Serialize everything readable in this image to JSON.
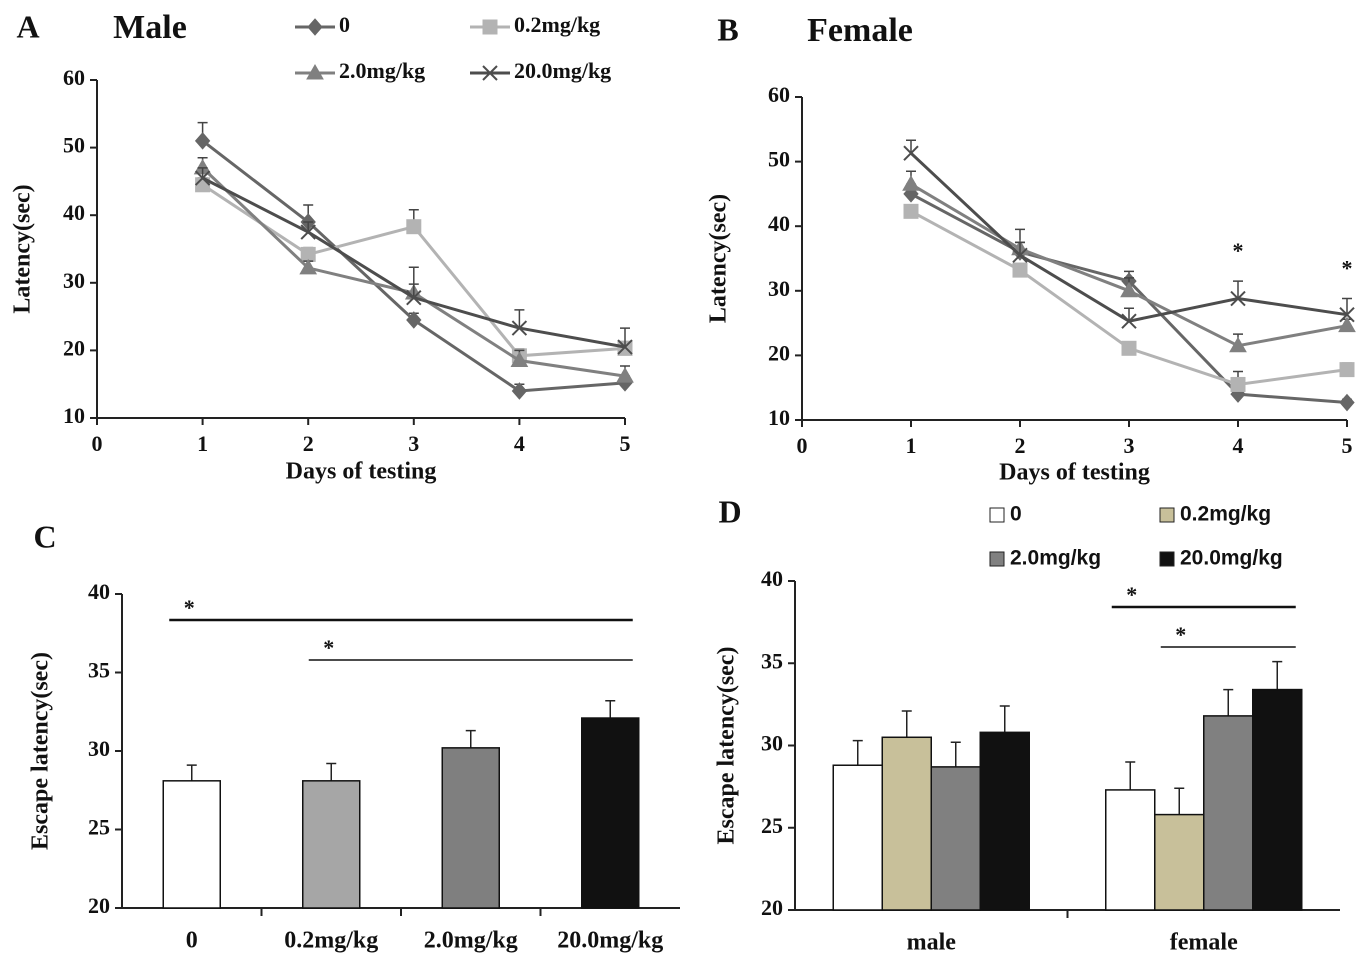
{
  "chart_data": [
    {
      "type": "line",
      "panel_label": "A",
      "title": "Male",
      "xlabel": "Days of testing",
      "ylabel": "Latency(sec)",
      "x": [
        1,
        2,
        3,
        4,
        5
      ],
      "xlim": [
        0,
        5
      ],
      "xticks": [
        0,
        1,
        2,
        3,
        4,
        5
      ],
      "ylim": [
        10,
        60
      ],
      "yticks": [
        10,
        20,
        30,
        40,
        50,
        60
      ],
      "legend": true,
      "series": [
        {
          "name": "0",
          "color": "#666666",
          "marker": "diamond",
          "values": [
            51,
            39,
            24.5,
            14,
            15.2
          ],
          "errors": [
            2.7,
            2.5,
            1,
            1,
            1
          ]
        },
        {
          "name": "0.2mg/kg",
          "color": "#b3b3b3",
          "marker": "square",
          "values": [
            44.5,
            34.2,
            38.3,
            19.2,
            20.3
          ],
          "errors": [
            1,
            1,
            2.5,
            1,
            1
          ]
        },
        {
          "name": "2.0mg/kg",
          "color": "#808080",
          "marker": "triangle",
          "values": [
            47,
            32.2,
            28.5,
            18.5,
            16.2
          ],
          "errors": [
            1.5,
            1,
            3.8,
            1.5,
            1.5
          ]
        },
        {
          "name": "20.0mg/kg",
          "color": "#4d4d4d",
          "marker": "x",
          "values": [
            45.5,
            37.5,
            27.8,
            23.3,
            20.5
          ],
          "errors": [
            1.5,
            1.5,
            2,
            2.7,
            2.8
          ]
        }
      ]
    },
    {
      "type": "line",
      "panel_label": "B",
      "title": "Female",
      "xlabel": "Days of testing",
      "ylabel": "Latency(sec)",
      "x": [
        1,
        2,
        3,
        4,
        5
      ],
      "xlim": [
        0,
        5
      ],
      "xticks": [
        0,
        1,
        2,
        3,
        4,
        5
      ],
      "ylim": [
        10,
        60
      ],
      "yticks": [
        10,
        20,
        30,
        40,
        50,
        60
      ],
      "legend": false,
      "series": [
        {
          "name": "0",
          "color": "#666666",
          "marker": "diamond",
          "values": [
            45,
            36,
            31.5,
            14,
            12.7
          ],
          "errors": [
            1.5,
            1.5,
            1.5,
            1,
            0.5
          ]
        },
        {
          "name": "0.2mg/kg",
          "color": "#b3b3b3",
          "marker": "square",
          "values": [
            42.3,
            33.2,
            21.1,
            15.5,
            17.8
          ],
          "errors": [
            1,
            1,
            1,
            2,
            1
          ]
        },
        {
          "name": "2.0mg/kg",
          "color": "#808080",
          "marker": "triangle",
          "values": [
            46.5,
            36.5,
            30,
            21.5,
            24.6
          ],
          "errors": [
            2,
            3,
            2,
            1.8,
            1
          ]
        },
        {
          "name": "20.0mg/kg",
          "color": "#4d4d4d",
          "marker": "x",
          "values": [
            51.3,
            35.5,
            25.3,
            28.8,
            26.3
          ],
          "errors": [
            2,
            2,
            2,
            2.7,
            2.5
          ]
        }
      ],
      "annotations": [
        {
          "text": "*",
          "x": 4
        },
        {
          "text": "*",
          "x": 5
        }
      ]
    },
    {
      "type": "bar",
      "panel_label": "C",
      "ylabel": "Escape latency(sec)",
      "categories": [
        "0",
        "0.2mg/kg",
        "2.0mg/kg",
        "20.0mg/kg"
      ],
      "values": [
        28.1,
        28.1,
        30.2,
        32.1
      ],
      "errors": [
        1,
        1.1,
        1.1,
        1.1
      ],
      "colors": [
        "#ffffff",
        "#a6a6a6",
        "#7f7f7f",
        "#111111"
      ],
      "ylim": [
        20,
        40
      ],
      "yticks": [
        20,
        25,
        30,
        35,
        40
      ],
      "annotations": [
        {
          "text": "*",
          "from": "0",
          "to": "20.0mg/kg"
        },
        {
          "text": "*",
          "from": "0.2mg/kg",
          "to": "20.0mg/kg"
        }
      ]
    },
    {
      "type": "bar",
      "panel_label": "D",
      "ylabel": "Escape latency(sec)",
      "legend": true,
      "categories": [
        "male",
        "female"
      ],
      "ylim": [
        20,
        40
      ],
      "yticks": [
        20,
        25,
        30,
        35,
        40
      ],
      "series": [
        {
          "name": "0",
          "color": "#ffffff",
          "values": [
            28.8,
            27.3
          ],
          "errors": [
            1.5,
            1.7
          ]
        },
        {
          "name": "0.2mg/kg",
          "color": "#c8c09a",
          "values": [
            30.5,
            25.8
          ],
          "errors": [
            1.6,
            1.6
          ]
        },
        {
          "name": "2.0mg/kg",
          "color": "#808080",
          "values": [
            28.7,
            31.8
          ],
          "errors": [
            1.5,
            1.6
          ]
        },
        {
          "name": "20.0mg/kg",
          "color": "#111111",
          "values": [
            30.8,
            33.4
          ],
          "errors": [
            1.6,
            1.7
          ]
        }
      ],
      "annotations": [
        {
          "text": "*",
          "category": "female",
          "from": "0",
          "to": "20.0mg/kg"
        },
        {
          "text": "*",
          "category": "female",
          "from": "0.2mg/kg",
          "to": "20.0mg/kg"
        }
      ]
    }
  ]
}
